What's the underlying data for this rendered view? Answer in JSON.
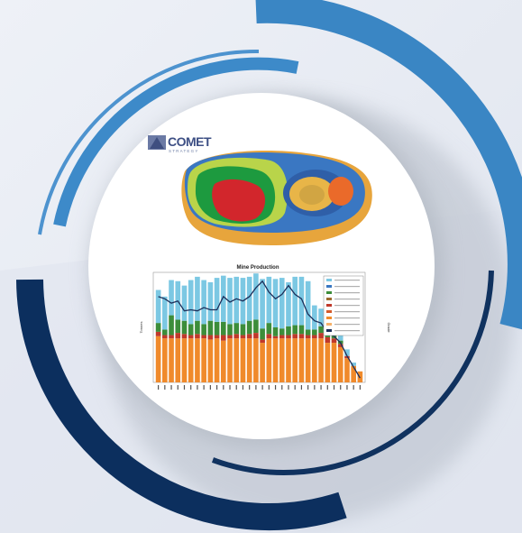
{
  "logo": {
    "name": "COMET",
    "tagline": "STRATEGY"
  },
  "chart_data": {
    "type": "bar",
    "title": "Mine Production",
    "xlabel": "",
    "ylabel": "Tonnes",
    "y2label": "Grade",
    "stacked": true,
    "categories": [
      "1",
      "2",
      "3",
      "4",
      "5",
      "6",
      "7",
      "8",
      "9",
      "10",
      "11",
      "12",
      "13",
      "14",
      "15",
      "16",
      "17",
      "18",
      "19",
      "20",
      "21",
      "22",
      "23",
      "24",
      "25",
      "26",
      "27",
      "28",
      "29",
      "30",
      "31",
      "32"
    ],
    "ylim": [
      0,
      10
    ],
    "series": [
      {
        "name": "",
        "color": "#f08a2b",
        "values": [
          4.2,
          4.0,
          4.0,
          4.0,
          4.0,
          4.0,
          4.0,
          4.0,
          3.9,
          4.0,
          3.8,
          4.0,
          4.0,
          4.0,
          4.0,
          4.0,
          3.6,
          4.0,
          4.0,
          4.0,
          4.0,
          4.0,
          4.0,
          4.0,
          4.0,
          4.0,
          3.6,
          3.6,
          3.2,
          2.2,
          1.5,
          1.0
        ]
      },
      {
        "name": "",
        "color": "#c0392b",
        "values": [
          0.4,
          0.3,
          0.3,
          0.5,
          0.4,
          0.3,
          0.4,
          0.3,
          0.4,
          0.3,
          0.5,
          0.3,
          0.4,
          0.3,
          0.4,
          0.5,
          0.3,
          0.4,
          0.2,
          0.3,
          0.3,
          0.4,
          0.4,
          0.3,
          0.3,
          0.5,
          0.5,
          0.4,
          0.3,
          0.2,
          0.0,
          0.0
        ]
      },
      {
        "name": "",
        "color": "#3c8d3a",
        "values": [
          0.8,
          0.5,
          1.8,
          1.2,
          1.2,
          1.0,
          1.2,
          1.0,
          1.3,
          1.2,
          1.2,
          1.0,
          1.0,
          1.0,
          1.2,
          1.2,
          1.0,
          1.0,
          0.8,
          0.6,
          0.8,
          0.8,
          0.8,
          0.5,
          0.5,
          0.6,
          0.4,
          0.4,
          0.3,
          0.0,
          0.0,
          0.0
        ]
      },
      {
        "name": "",
        "color": "#7cc8e3",
        "values": [
          3.0,
          3.0,
          3.2,
          3.5,
          3.2,
          4.0,
          4.0,
          4.0,
          3.5,
          4.0,
          4.2,
          4.2,
          4.2,
          4.2,
          4.0,
          4.2,
          4.5,
          4.2,
          4.4,
          4.6,
          4.0,
          4.4,
          4.4,
          4.4,
          2.2,
          1.6,
          1.6,
          1.8,
          1.2,
          0.6,
          0.3,
          0.0
        ]
      }
    ],
    "line": {
      "name": "",
      "color": "#1c2f5a",
      "values": [
        7.8,
        7.6,
        7.2,
        7.4,
        6.5,
        6.6,
        6.5,
        6.8,
        6.6,
        6.6,
        7.8,
        7.3,
        7.6,
        7.4,
        7.8,
        8.6,
        9.2,
        8.2,
        7.6,
        8.0,
        8.8,
        8.0,
        7.6,
        6.2,
        5.6,
        5.4,
        4.5,
        4.2,
        3.6,
        2.4,
        1.4,
        0.4
      ]
    }
  }
}
